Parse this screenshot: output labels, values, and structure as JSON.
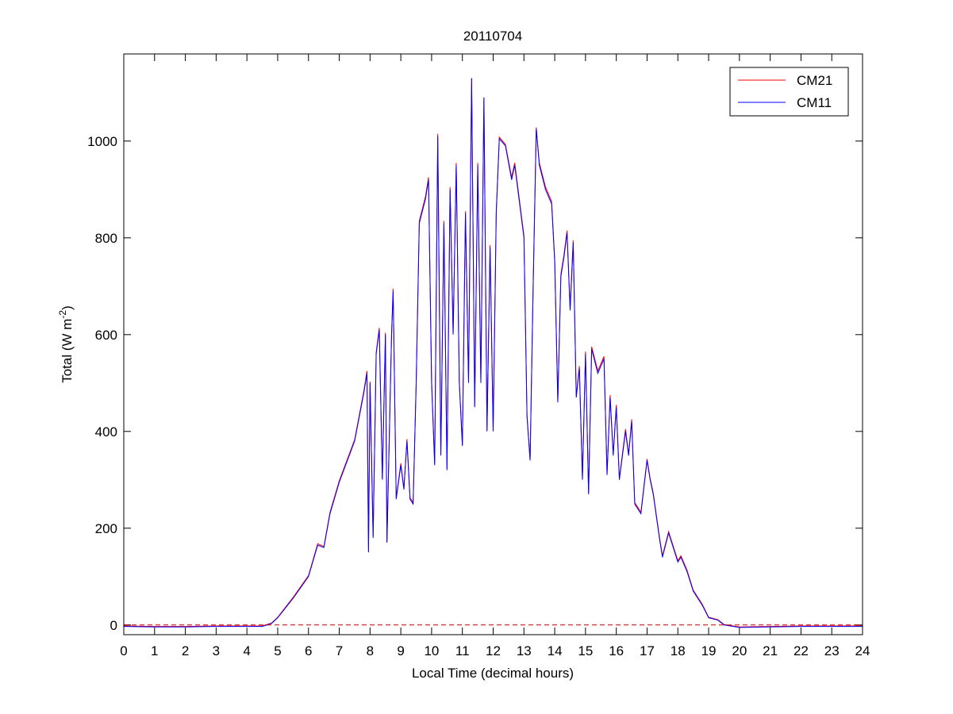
{
  "chart_data": {
    "type": "line",
    "title": "20110704",
    "xlabel": "Local Time (decimal hours)",
    "ylabel": [
      "Total (W m",
      "-2",
      ")"
    ],
    "x": [
      0,
      1,
      2,
      3,
      4,
      4.5,
      4.8,
      5,
      5.5,
      6,
      6.3,
      6.5,
      6.7,
      7,
      7.5,
      7.8,
      7.9,
      7.95,
      8,
      8.1,
      8.2,
      8.3,
      8.4,
      8.5,
      8.55,
      8.7,
      8.75,
      8.85,
      9,
      9.1,
      9.2,
      9.3,
      9.4,
      9.5,
      9.6,
      9.8,
      9.9,
      10,
      10.1,
      10.2,
      10.3,
      10.4,
      10.5,
      10.6,
      10.7,
      10.8,
      10.9,
      11,
      11.1,
      11.2,
      11.3,
      11.4,
      11.5,
      11.6,
      11.7,
      11.8,
      11.9,
      12,
      12.1,
      12.2,
      12.4,
      12.6,
      12.7,
      12.8,
      13,
      13.1,
      13.2,
      13.3,
      13.4,
      13.5,
      13.7,
      13.9,
      14,
      14.1,
      14.2,
      14.3,
      14.4,
      14.5,
      14.6,
      14.7,
      14.8,
      14.9,
      15,
      15.1,
      15.2,
      15.4,
      15.6,
      15.7,
      15.8,
      15.9,
      16,
      16.1,
      16.3,
      16.4,
      16.5,
      16.6,
      16.8,
      17,
      17.1,
      17.2,
      17.4,
      17.5,
      17.7,
      17.9,
      18,
      18.1,
      18.3,
      18.5,
      18.8,
      19,
      19.3,
      19.5,
      19.8,
      20,
      21,
      22,
      23,
      24
    ],
    "series": [
      {
        "name": "CM21",
        "color": "#ff0000",
        "values": [
          -2,
          -3,
          -3,
          -2,
          -2,
          -2,
          4,
          16,
          57,
          102,
          168,
          162,
          233,
          298,
          383,
          484,
          525,
          152,
          503,
          183,
          564,
          614,
          303,
          604,
          172,
          604,
          695,
          263,
          334,
          283,
          384,
          263,
          253,
          504,
          835,
          885,
          925,
          504,
          333,
          1015,
          353,
          835,
          323,
          905,
          604,
          955,
          503,
          373,
          855,
          503,
          1130,
          453,
          955,
          503,
          1090,
          403,
          785,
          403,
          855,
          1008,
          993,
          925,
          955,
          905,
          805,
          433,
          343,
          705,
          1028,
          955,
          905,
          875,
          755,
          463,
          725,
          765,
          815,
          655,
          795,
          473,
          535,
          303,
          565,
          273,
          575,
          525,
          555,
          313,
          475,
          353,
          455,
          303,
          405,
          353,
          425,
          253,
          233,
          343,
          303,
          273,
          183,
          143,
          193,
          153,
          133,
          143,
          113,
          72,
          42,
          16,
          11,
          1,
          -2,
          -4,
          -3,
          -2,
          -2,
          -2
        ]
      },
      {
        "name": "CM11",
        "color": "#0000ff",
        "values": [
          -3,
          -4,
          -4,
          -3,
          -3,
          -3,
          3,
          15,
          55,
          100,
          165,
          160,
          230,
          295,
          380,
          480,
          520,
          150,
          500,
          180,
          560,
          610,
          300,
          600,
          170,
          600,
          690,
          260,
          330,
          280,
          380,
          260,
          250,
          500,
          830,
          880,
          920,
          500,
          330,
          1010,
          350,
          830,
          320,
          900,
          600,
          950,
          500,
          370,
          850,
          500,
          1130,
          450,
          950,
          500,
          1090,
          400,
          780,
          400,
          850,
          1005,
          990,
          920,
          950,
          900,
          800,
          430,
          340,
          700,
          1025,
          950,
          900,
          870,
          750,
          460,
          720,
          760,
          810,
          650,
          790,
          470,
          530,
          300,
          560,
          270,
          570,
          520,
          550,
          310,
          470,
          350,
          450,
          300,
          400,
          350,
          420,
          250,
          230,
          340,
          300,
          270,
          180,
          140,
          190,
          150,
          130,
          140,
          110,
          70,
          40,
          15,
          10,
          0,
          -3,
          -5,
          -4,
          -3,
          -3,
          -3
        ]
      }
    ],
    "reference_line": {
      "value": 0,
      "color": "#c00000"
    },
    "xlim": [
      0,
      24
    ],
    "xticks": [
      0,
      1,
      2,
      3,
      4,
      5,
      6,
      7,
      8,
      9,
      10,
      11,
      12,
      13,
      14,
      15,
      16,
      17,
      18,
      19,
      20,
      21,
      22,
      23,
      24
    ],
    "ylim": [
      -20,
      1180
    ],
    "yticks": [
      0,
      200,
      400,
      600,
      800,
      1000
    ],
    "legend": "upper right"
  }
}
